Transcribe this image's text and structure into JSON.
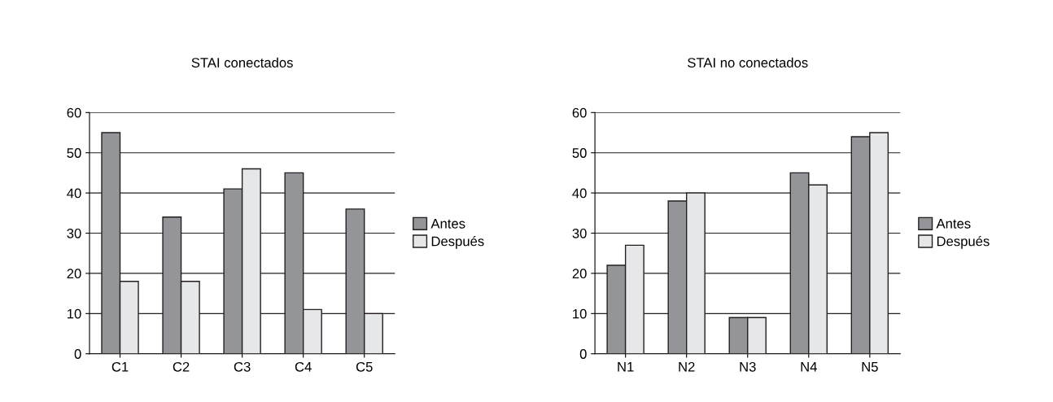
{
  "chart_data": [
    {
      "type": "bar",
      "title": "STAI conectados",
      "categories": [
        "C1",
        "C2",
        "C3",
        "C4",
        "C5"
      ],
      "series": [
        {
          "name": "Antes",
          "color": "#939598",
          "values": [
            55,
            34,
            41,
            45,
            36
          ]
        },
        {
          "name": "Después",
          "color": "#e6e7e8",
          "values": [
            18,
            18,
            46,
            11,
            10
          ]
        }
      ],
      "ylim": [
        0,
        60
      ],
      "yticks": [
        0,
        10,
        20,
        30,
        40,
        50,
        60
      ],
      "grid": "y",
      "legend": "right"
    },
    {
      "type": "bar",
      "title": "STAI no conectados",
      "categories": [
        "N1",
        "N2",
        "N3",
        "N4",
        "N5"
      ],
      "series": [
        {
          "name": "Antes",
          "color": "#939598",
          "values": [
            22,
            38,
            9,
            45,
            54
          ]
        },
        {
          "name": "Después",
          "color": "#e6e7e8",
          "values": [
            27,
            40,
            9,
            42,
            55
          ]
        }
      ],
      "ylim": [
        0,
        60
      ],
      "yticks": [
        0,
        10,
        20,
        30,
        40,
        50,
        60
      ],
      "grid": "y",
      "legend": "right"
    }
  ]
}
